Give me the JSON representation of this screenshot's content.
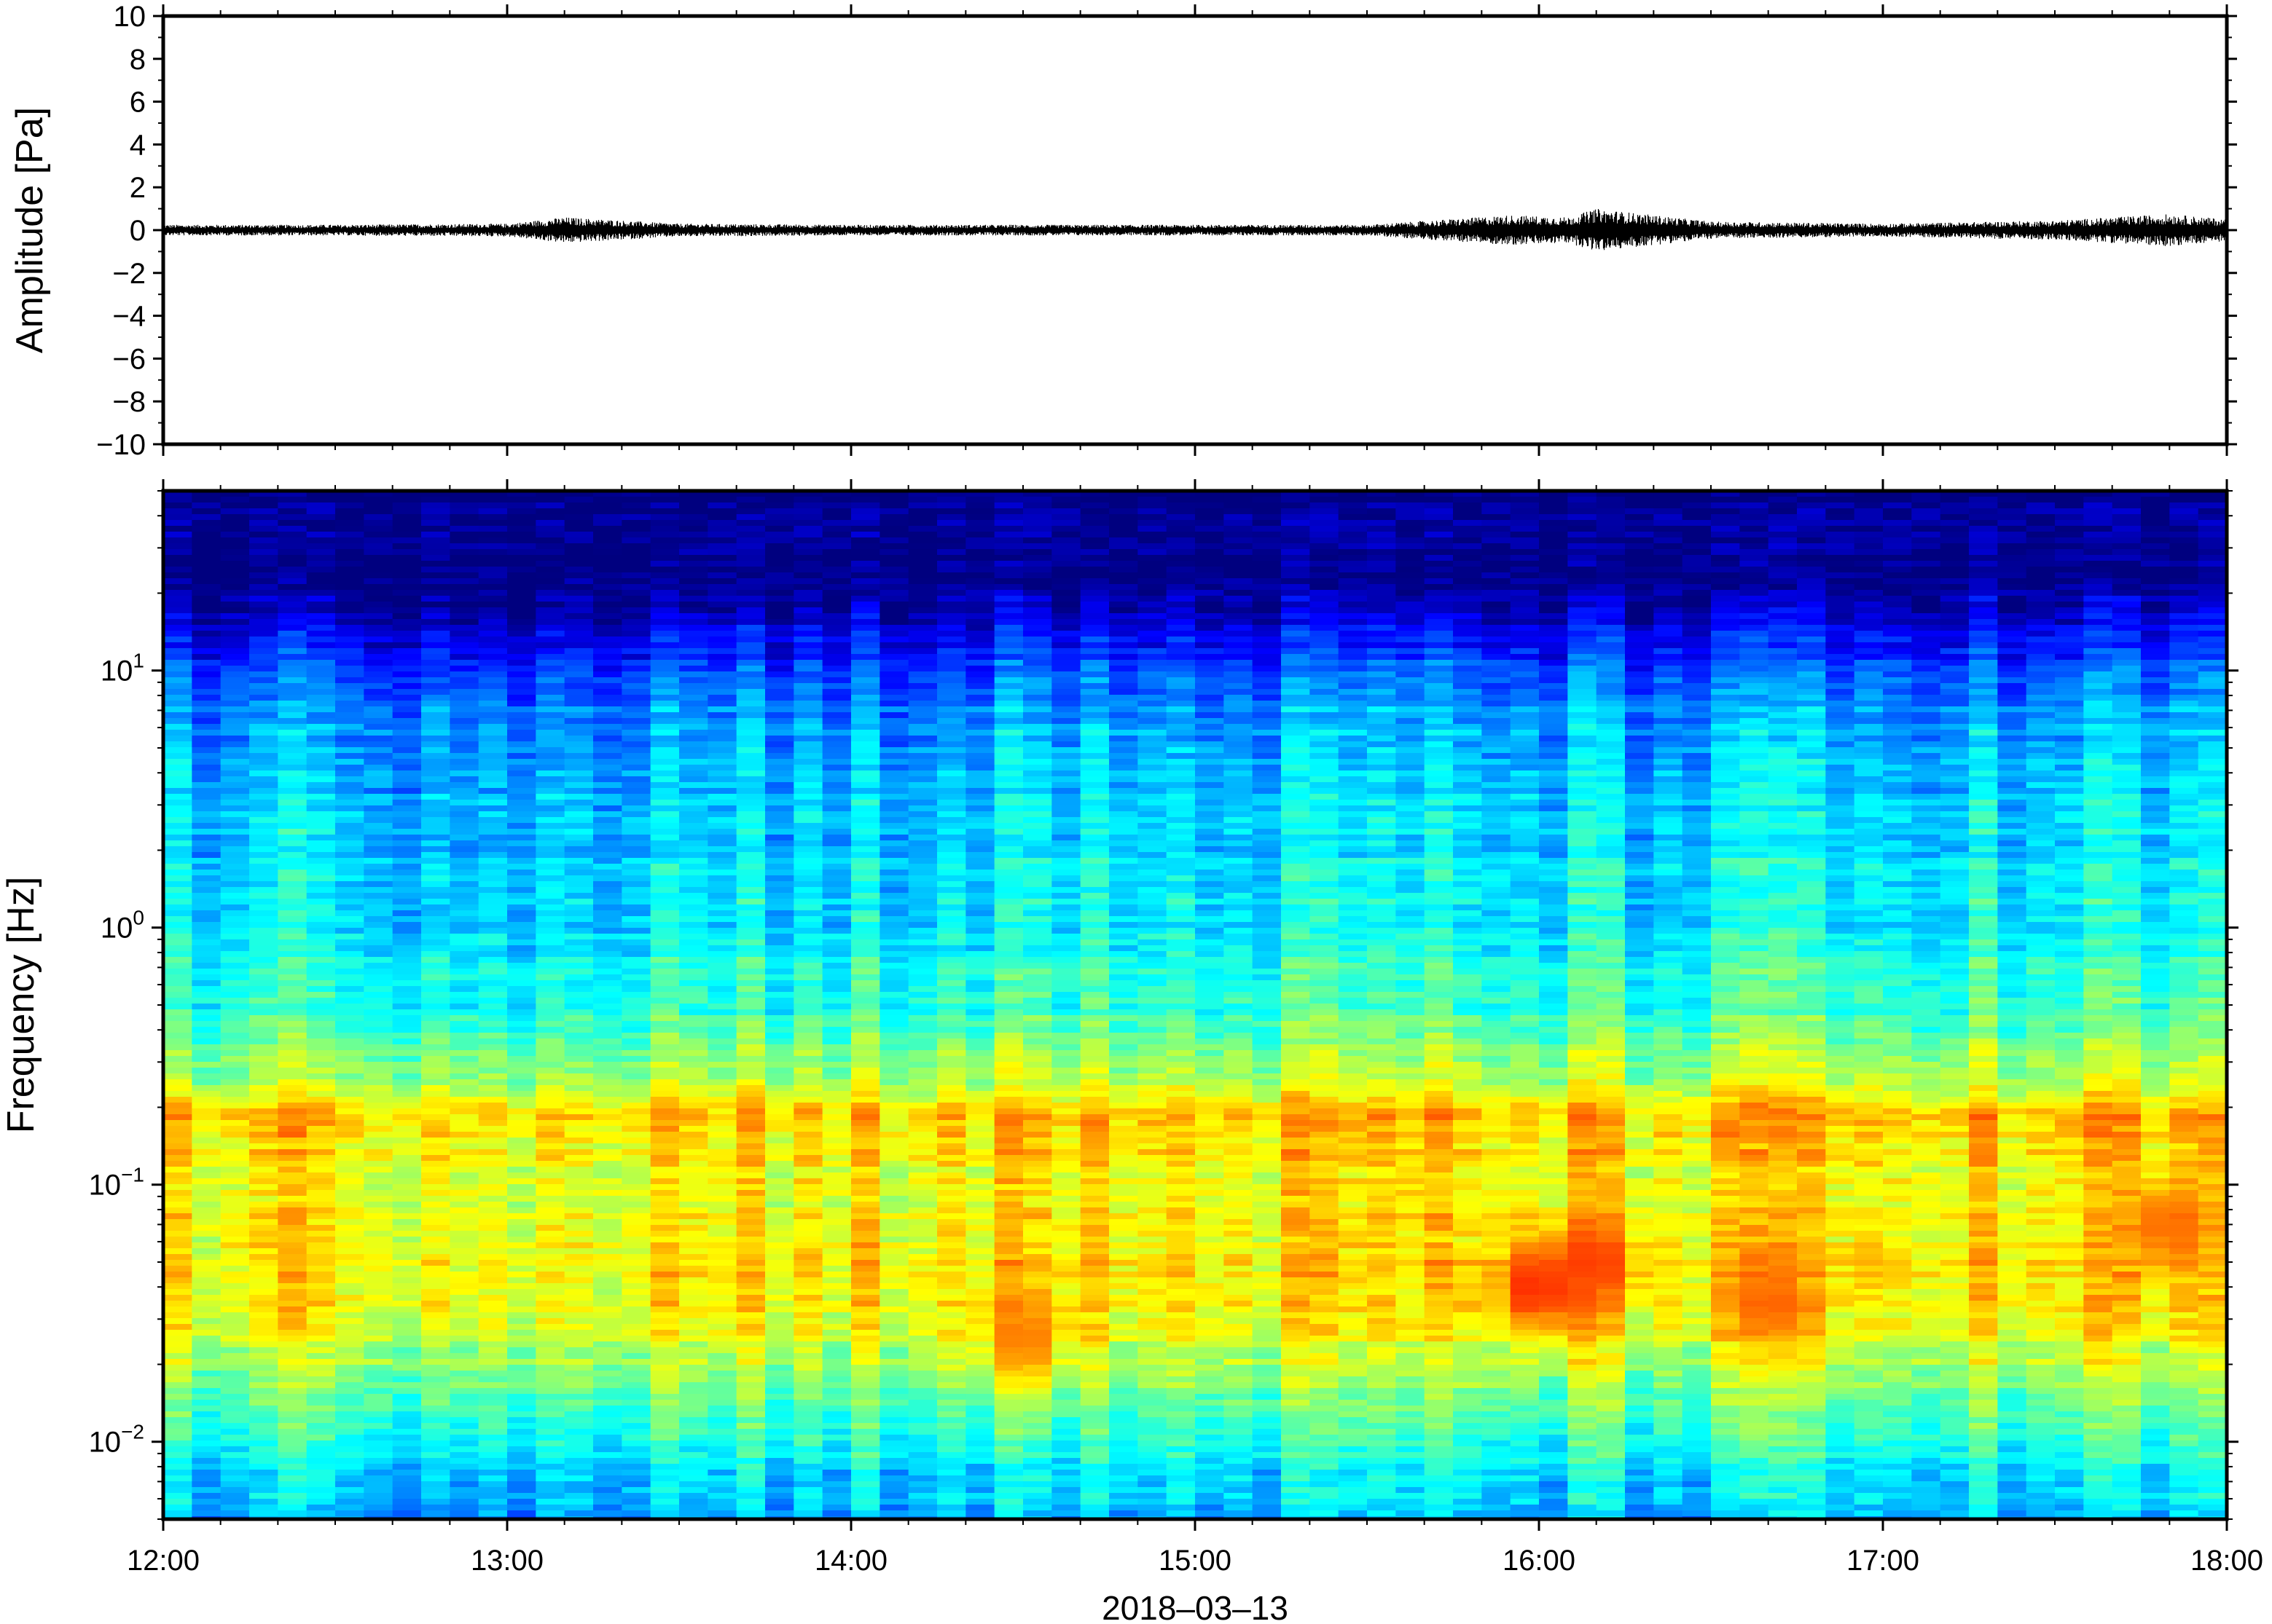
{
  "chart_data": [
    {
      "type": "line",
      "title": "",
      "ylabel": "Amplitude [Pa]",
      "ylim": [
        -10,
        10
      ],
      "yticks": [
        {
          "value": 10,
          "label": "10"
        },
        {
          "value": 8,
          "label": "8"
        },
        {
          "value": 6,
          "label": "6"
        },
        {
          "value": 4,
          "label": "4"
        },
        {
          "value": 2,
          "label": "2"
        },
        {
          "value": 0,
          "label": "0"
        },
        {
          "value": -2,
          "label": "−2"
        },
        {
          "value": -4,
          "label": "−4"
        },
        {
          "value": -6,
          "label": "−6"
        },
        {
          "value": -8,
          "label": "−8"
        },
        {
          "value": -10,
          "label": "−10"
        }
      ],
      "xlim": [
        "2018-03-13 12:00",
        "2018-03-13 18:00"
      ],
      "series": [
        {
          "line_color": "#000000",
          "envelope": {
            "x": [
              "12:00",
              "12:30",
              "13:00",
              "13:10",
              "13:30",
              "14:00",
              "14:30",
              "15:00",
              "15:30",
              "15:55",
              "16:05",
              "16:10",
              "16:30",
              "17:00",
              "17:30",
              "17:50",
              "18:00"
            ],
            "amplitude": [
              0.25,
              0.25,
              0.3,
              0.6,
              0.3,
              0.25,
              0.25,
              0.25,
              0.25,
              0.7,
              0.6,
              1.0,
              0.4,
              0.3,
              0.45,
              0.75,
              0.5
            ]
          }
        }
      ]
    },
    {
      "type": "heatmap",
      "title": "",
      "ylabel": "Frequency [Hz]",
      "xlabel": "2018–03–13",
      "y_scale": "log",
      "ylim": [
        0.005,
        50
      ],
      "xlim": [
        "2018-03-13 12:00",
        "2018-03-13 18:00"
      ],
      "yticks": [
        {
          "value": 10,
          "base": "10",
          "exp": "1"
        },
        {
          "value": 1,
          "base": "10",
          "exp": "0"
        },
        {
          "value": 0.1,
          "base": "10",
          "exp": "−1"
        },
        {
          "value": 0.01,
          "base": "10",
          "exp": "−2"
        }
      ],
      "xticks": [
        "12:00",
        "13:00",
        "14:00",
        "15:00",
        "16:00",
        "17:00",
        "18:00"
      ],
      "colormap": "jet",
      "colormap_stops": [
        "#00007f",
        "#0000ff",
        "#0080ff",
        "#00ffff",
        "#80ff80",
        "#ffff00",
        "#ff8000",
        "#ff0000",
        "#7f0000"
      ],
      "intensity_profile": {
        "frequency_hz": [
          50,
          20,
          12,
          7,
          3,
          1,
          0.5,
          0.3,
          0.18,
          0.1,
          0.05,
          0.03,
          0.02,
          0.012,
          0.008,
          0.005
        ],
        "level": [
          0.0,
          0.03,
          0.15,
          0.28,
          0.33,
          0.37,
          0.43,
          0.52,
          0.68,
          0.62,
          0.66,
          0.63,
          0.55,
          0.45,
          0.36,
          0.3
        ]
      },
      "hot_spots": [
        {
          "time": "16:00",
          "frequency_hz": 0.04,
          "level": 0.85
        },
        {
          "time": "16:10",
          "frequency_hz": 0.05,
          "level": 0.82
        },
        {
          "time": "16:40",
          "frequency_hz": 0.035,
          "level": 0.78
        },
        {
          "time": "14:30",
          "frequency_hz": 0.025,
          "level": 0.76
        },
        {
          "time": "17:50",
          "frequency_hz": 0.07,
          "level": 0.78
        }
      ]
    }
  ]
}
